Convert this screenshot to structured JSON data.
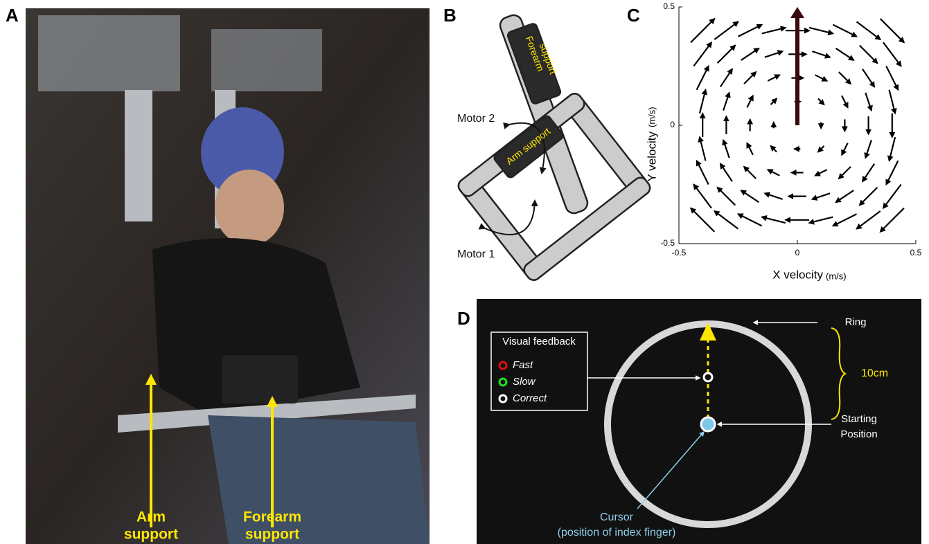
{
  "panel_labels": [
    "A",
    "B",
    "C",
    "D"
  ],
  "panel_a": {
    "arm_label": [
      "Arm",
      "support"
    ],
    "forearm_label": [
      "Forearm",
      "support"
    ]
  },
  "panel_b": {
    "forearm_support": [
      "Forearm",
      "support"
    ],
    "arm_support": "Arm support",
    "motor_2": "Motor 2",
    "motor_1": "Motor 1"
  },
  "chart_data": {
    "type": "quiver",
    "x_label": "X velocity",
    "x_unit": "(m/s)",
    "y_label": "Y velocity",
    "y_unit": "(m/s)",
    "xlim": [
      -0.5,
      0.5
    ],
    "ylim": [
      -0.5,
      0.5
    ],
    "xticks": [
      -0.5,
      0,
      0.5
    ],
    "yticks": [
      -0.5,
      0,
      0.5
    ],
    "color": "#000000",
    "grid_x": [
      -0.4,
      -0.3,
      -0.2,
      -0.1,
      0,
      0.1,
      0.2,
      0.3,
      0.4
    ],
    "grid_y": [
      0.4,
      0.3,
      0.2,
      0.1,
      0,
      -0.1,
      -0.2,
      -0.3,
      -0.4
    ],
    "u": [
      [
        0.1,
        0.1,
        0.1,
        0.1,
        0.1,
        0.1,
        0.1,
        0.1,
        0.1
      ],
      [
        0.075,
        0.075,
        0.075,
        0.075,
        0.075,
        0.075,
        0.075,
        0.075,
        0.075
      ],
      [
        0.05,
        0.05,
        0.05,
        0.05,
        0.05,
        0.05,
        0.05,
        0.05,
        0.05
      ],
      [
        0.025,
        0.025,
        0.025,
        0.025,
        0.025,
        0.025,
        0.025,
        0.025,
        0.025
      ],
      [
        0,
        0,
        0,
        0,
        0,
        0,
        0,
        0,
        0
      ],
      [
        -0.025,
        -0.025,
        -0.025,
        -0.025,
        -0.025,
        -0.025,
        -0.025,
        -0.025,
        -0.025
      ],
      [
        -0.05,
        -0.05,
        -0.05,
        -0.05,
        -0.05,
        -0.05,
        -0.05,
        -0.05,
        -0.05
      ],
      [
        -0.075,
        -0.075,
        -0.075,
        -0.075,
        -0.075,
        -0.075,
        -0.075,
        -0.075,
        -0.075
      ],
      [
        -0.1,
        -0.1,
        -0.1,
        -0.1,
        -0.1,
        -0.1,
        -0.1,
        -0.1,
        -0.1
      ]
    ],
    "v": [
      [
        0.1,
        0.075,
        0.05,
        0.025,
        0,
        -0.025,
        -0.05,
        -0.075,
        -0.1
      ],
      [
        0.1,
        0.075,
        0.05,
        0.025,
        0,
        -0.025,
        -0.05,
        -0.075,
        -0.1
      ],
      [
        0.1,
        0.075,
        0.05,
        0.025,
        0,
        -0.025,
        -0.05,
        -0.075,
        -0.1
      ],
      [
        0.1,
        0.075,
        0.05,
        0.025,
        0,
        -0.025,
        -0.05,
        -0.075,
        -0.1
      ],
      [
        0.1,
        0.075,
        0.05,
        0.025,
        0,
        -0.025,
        -0.05,
        -0.075,
        -0.1
      ],
      [
        0.1,
        0.075,
        0.05,
        0.025,
        0,
        -0.025,
        -0.05,
        -0.075,
        -0.1
      ],
      [
        0.1,
        0.075,
        0.05,
        0.025,
        0,
        -0.025,
        -0.05,
        -0.075,
        -0.1
      ],
      [
        0.1,
        0.075,
        0.05,
        0.025,
        0,
        -0.025,
        -0.05,
        -0.075,
        -0.1
      ],
      [
        0.1,
        0.075,
        0.05,
        0.025,
        0,
        -0.025,
        -0.05,
        -0.075,
        -0.1
      ]
    ],
    "highlight_vector": {
      "x": 0,
      "y": 0,
      "u": 0,
      "v": 0.5,
      "color": "#3a0a0a"
    }
  },
  "panel_d": {
    "legend_title": "Visual feedback",
    "legend_items": [
      "Fast",
      "Slow",
      "Correct"
    ],
    "ring": "Ring",
    "distance": "10cm",
    "starting_position": [
      "Starting",
      "Position"
    ],
    "cursor": [
      "Cursor",
      "(position of index finger)"
    ]
  }
}
